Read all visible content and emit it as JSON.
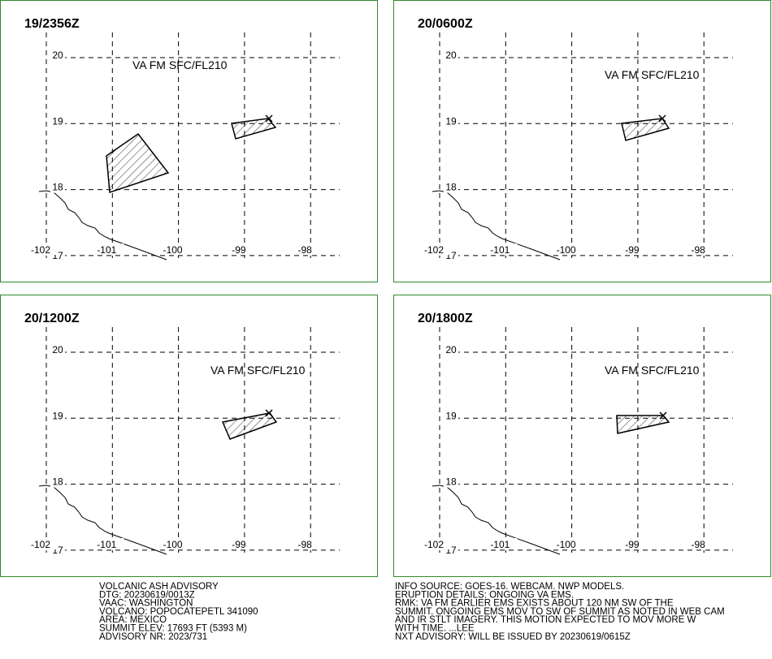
{
  "panels": [
    {
      "time": "19/2356Z",
      "label": "VA FM SFC/FL210"
    },
    {
      "time": "20/0600Z",
      "label": "VA FM SFC/FL210"
    },
    {
      "time": "20/1200Z",
      "label": "VA FM SFC/FL210"
    },
    {
      "time": "20/1800Z",
      "label": "VA FM SFC/FL210"
    }
  ],
  "grid": {
    "lat": [
      20,
      19,
      18,
      17
    ],
    "lon": [
      -102,
      -101,
      -100,
      -99,
      -98
    ]
  },
  "advisory_left": [
    "VOLCANIC ASH ADVISORY",
    "DTG: 20230619/0013Z",
    "VAAC: WASHINGTON",
    "VOLCANO: POPOCATEPETL 341090",
    "AREA: MEXICO",
    "SUMMIT ELEV: 17693 FT (5393 M)",
    "ADVISORY NR: 2023/731"
  ],
  "advisory_right": [
    "INFO SOURCE: GOES-16. WEBCAM. NWP MODELS.",
    "ERUPTION DETAILS: ONGOING VA EMS.",
    "RMK: VA FM EARLIER EMS EXISTS ABOUT 120 NM SW OF THE",
    "SUMMIT. ONGOING EMS MOV TO SW OF SUMMIT AS NOTED IN WEB CAM",
    "AND IR STLT IMAGERY. THIS MOTION EXPECTED TO MOV MORE W",
    "WITH TIME. ...LEE",
    "NXT ADVISORY: WILL BE ISSUED BY 20230619/0615Z"
  ]
}
